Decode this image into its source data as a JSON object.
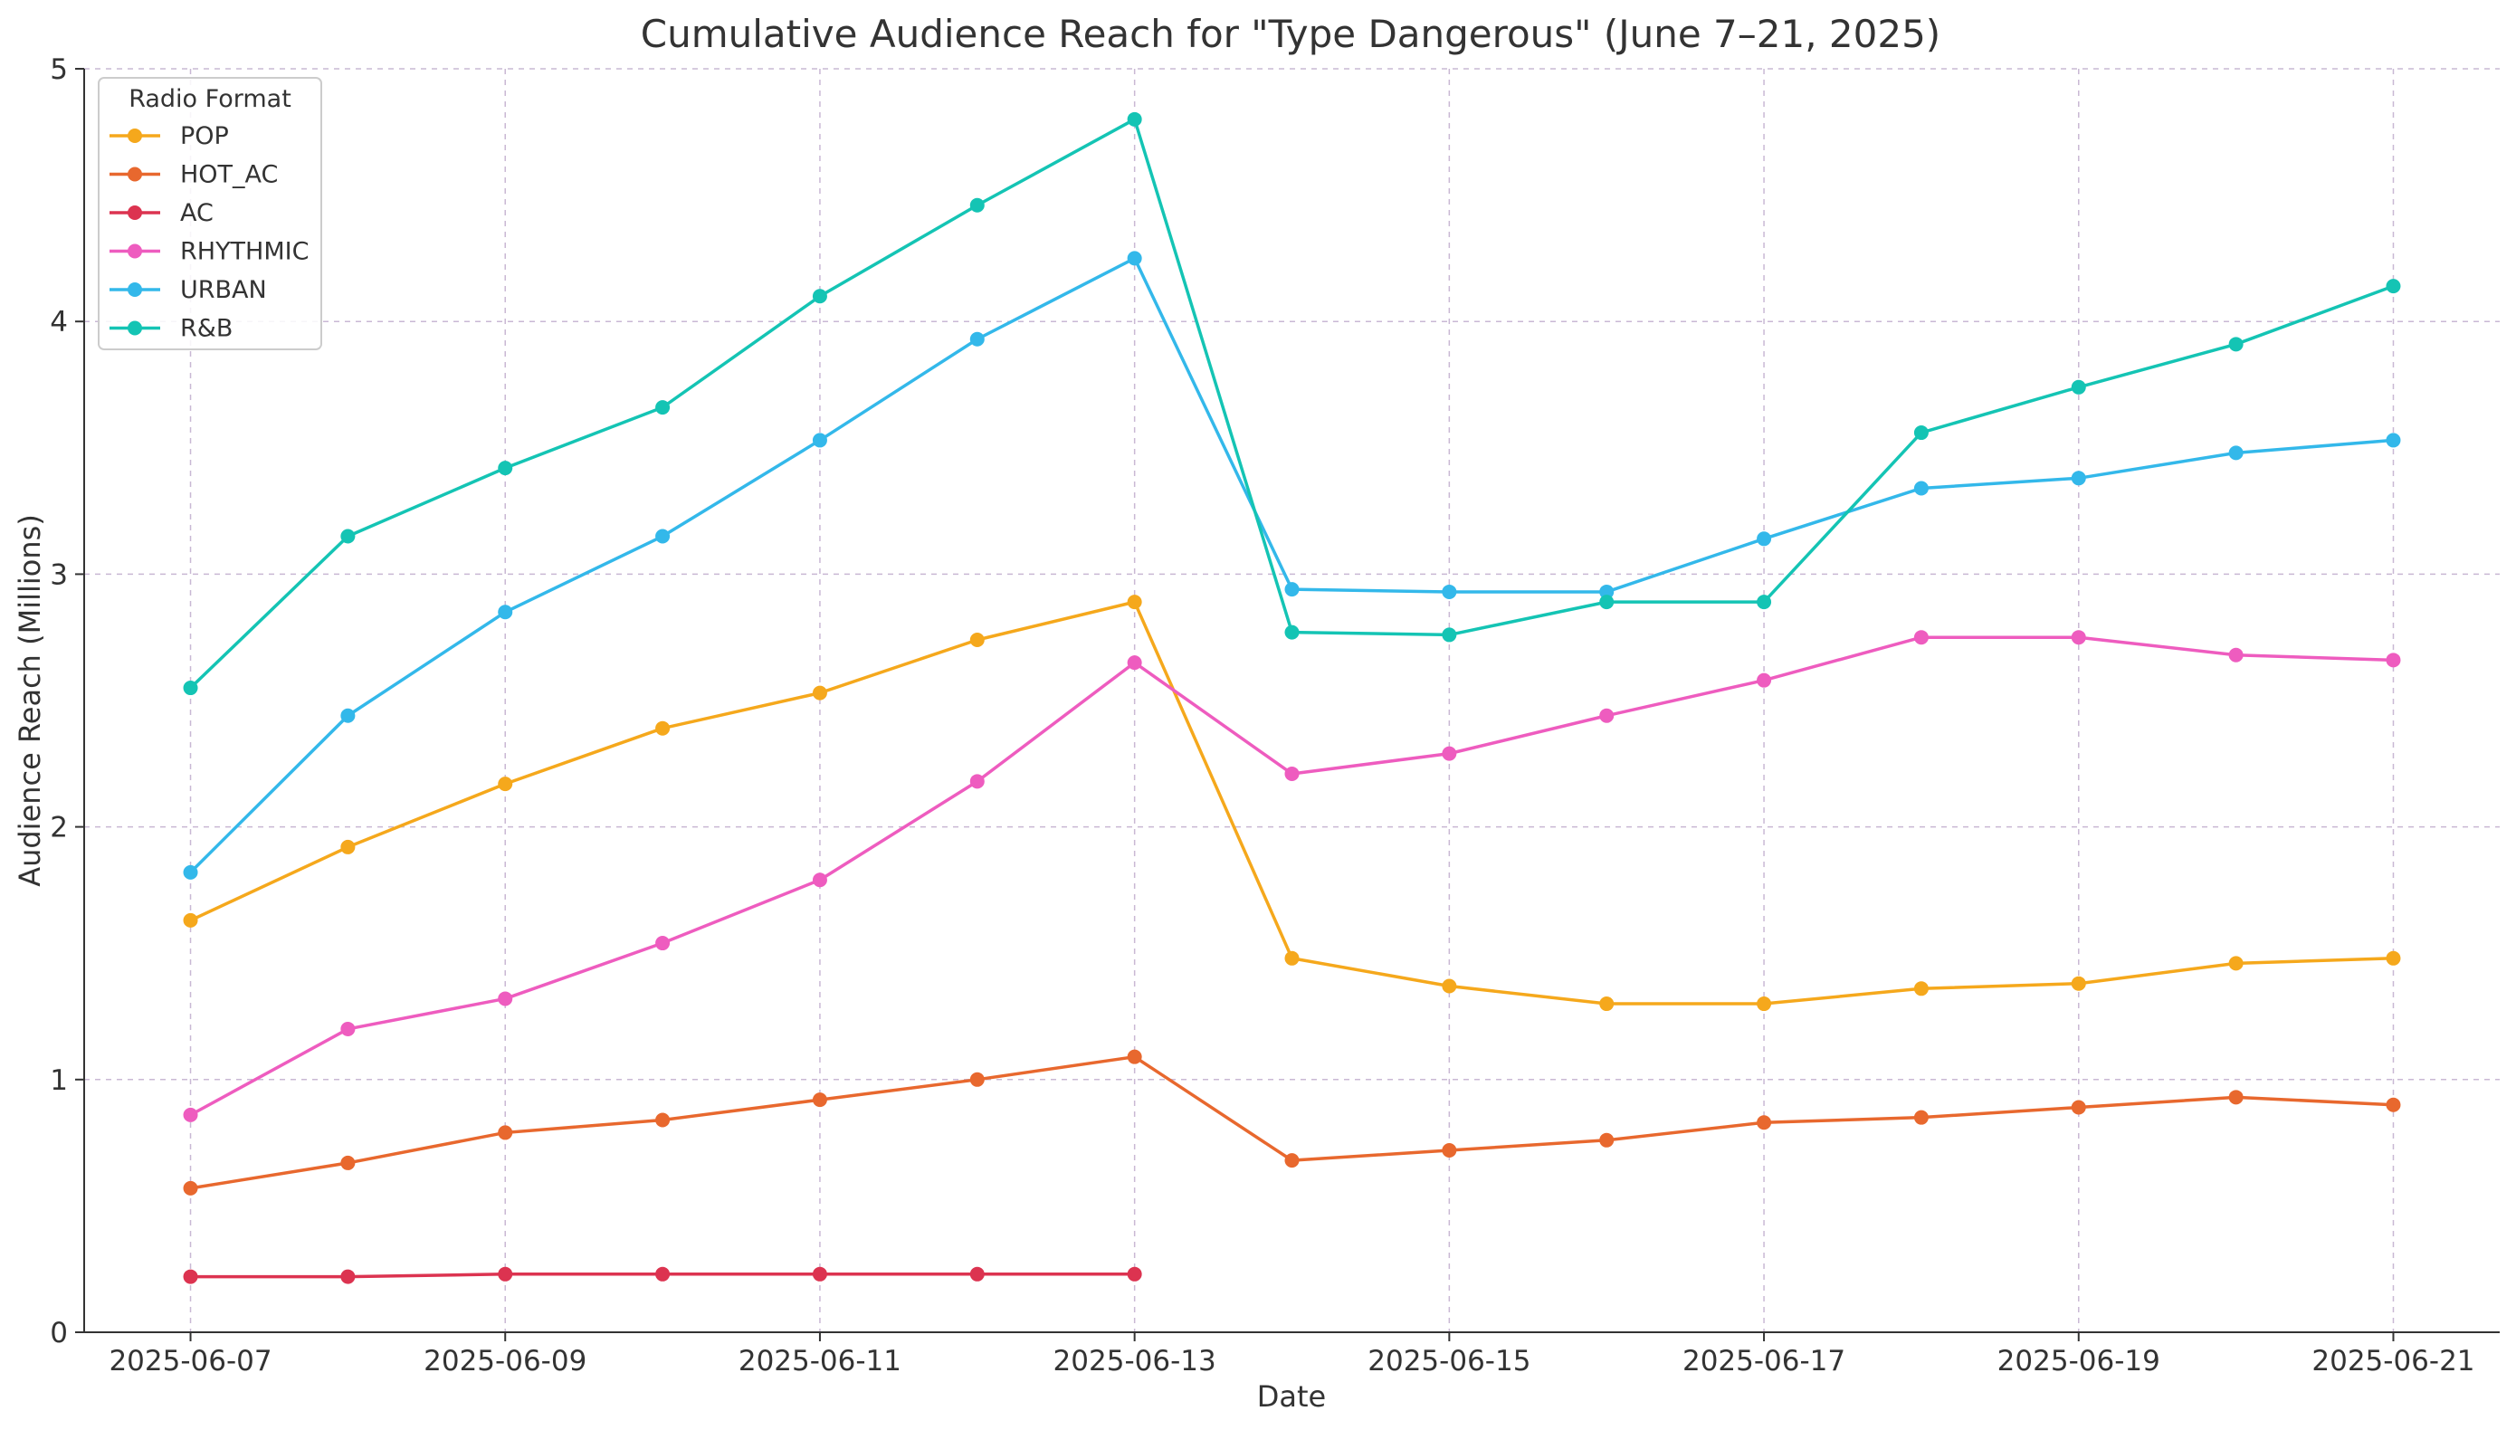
{
  "chart_data": {
    "type": "line",
    "title": "Cumulative Audience Reach for \"Type Dangerous\" (June 7–21, 2025)",
    "xlabel": "Date",
    "ylabel": "Audience Reach (Millions)",
    "ylim": [
      0,
      5
    ],
    "yticks": [
      "0",
      "1",
      "2",
      "3",
      "4",
      "5"
    ],
    "xlim": [
      "2025-06-06",
      "2025-06-21"
    ],
    "xticks": [
      "2025-06-07",
      "2025-06-09",
      "2025-06-11",
      "2025-06-13",
      "2025-06-15",
      "2025-06-17",
      "2025-06-19",
      "2025-06-21"
    ],
    "grid": true,
    "legend": {
      "title": "Radio Format",
      "placement": "top-left"
    },
    "x": [
      "2025-06-07",
      "2025-06-08",
      "2025-06-09",
      "2025-06-10",
      "2025-06-11",
      "2025-06-12",
      "2025-06-13",
      "2025-06-14",
      "2025-06-15",
      "2025-06-16",
      "2025-06-17",
      "2025-06-18",
      "2025-06-19",
      "2025-06-20",
      "2025-06-21"
    ],
    "series": [
      {
        "name": "POP",
        "color": "#f5a81c",
        "values": [
          1.63,
          1.92,
          2.17,
          2.39,
          2.53,
          2.74,
          2.89,
          1.48,
          1.37,
          1.3,
          1.3,
          1.36,
          1.38,
          1.46,
          1.48
        ]
      },
      {
        "name": "HOT_AC",
        "color": "#e8682e",
        "values": [
          0.57,
          0.67,
          0.79,
          0.84,
          0.92,
          1.0,
          1.09,
          0.68,
          0.72,
          0.76,
          0.83,
          0.85,
          0.89,
          0.93,
          0.9
        ]
      },
      {
        "name": "AC",
        "color": "#dc3350",
        "values": [
          0.22,
          0.22,
          0.23,
          0.23,
          0.23,
          0.23,
          0.23,
          null,
          null,
          null,
          null,
          null,
          null,
          null,
          null
        ]
      },
      {
        "name": "RHYTHMIC",
        "color": "#ee5cbf",
        "values": [
          0.86,
          1.2,
          1.32,
          1.54,
          1.79,
          2.18,
          2.65,
          2.21,
          2.29,
          2.44,
          2.58,
          2.75,
          2.75,
          2.68,
          2.66
        ]
      },
      {
        "name": "URBAN",
        "color": "#33b8ea",
        "values": [
          1.82,
          2.44,
          2.85,
          3.15,
          3.53,
          3.93,
          4.25,
          2.94,
          2.93,
          2.93,
          3.14,
          3.34,
          3.38,
          3.48,
          3.53
        ]
      },
      {
        "name": "R&B",
        "color": "#14c4b4",
        "values": [
          2.55,
          3.15,
          3.42,
          3.66,
          4.1,
          4.46,
          4.8,
          2.77,
          2.76,
          2.89,
          2.89,
          3.56,
          3.74,
          3.91,
          4.14
        ]
      }
    ]
  }
}
